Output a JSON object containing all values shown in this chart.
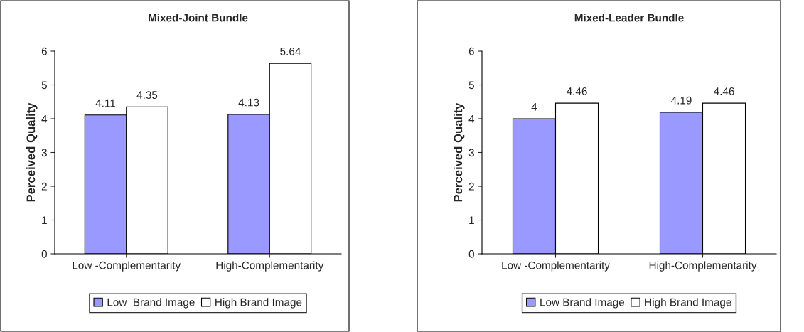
{
  "chart_data": [
    {
      "type": "bar",
      "title": "Mixed-Joint Bundle",
      "ylabel": "Perceived Quality",
      "categories": [
        "Low -Complementarity",
        "High-Complementarity"
      ],
      "series": [
        {
          "name": "Low  Brand Image",
          "color": "#9999ff",
          "values": [
            4.11,
            4.13
          ]
        },
        {
          "name": "High Brand Image",
          "color": "#ffffff",
          "values": [
            4.35,
            5.64
          ]
        }
      ],
      "ylim": [
        0,
        6
      ],
      "yticks": [
        0,
        1,
        2,
        3,
        4,
        5,
        6
      ],
      "data_labels": true,
      "legend": "bottom",
      "grid": false
    },
    {
      "type": "bar",
      "title": "Mixed-Leader Bundle",
      "ylabel": "Perceived Quality",
      "categories": [
        "Low -Complementarity",
        "High-Complementarity"
      ],
      "series": [
        {
          "name": "Low Brand Image",
          "color": "#9999ff",
          "values": [
            4,
            4.19
          ]
        },
        {
          "name": "High Brand Image",
          "color": "#ffffff",
          "values": [
            4.46,
            4.46
          ]
        }
      ],
      "ylim": [
        0,
        6
      ],
      "yticks": [
        0,
        1,
        2,
        3,
        4,
        5,
        6
      ],
      "data_labels": true,
      "legend": "bottom",
      "grid": false
    }
  ]
}
